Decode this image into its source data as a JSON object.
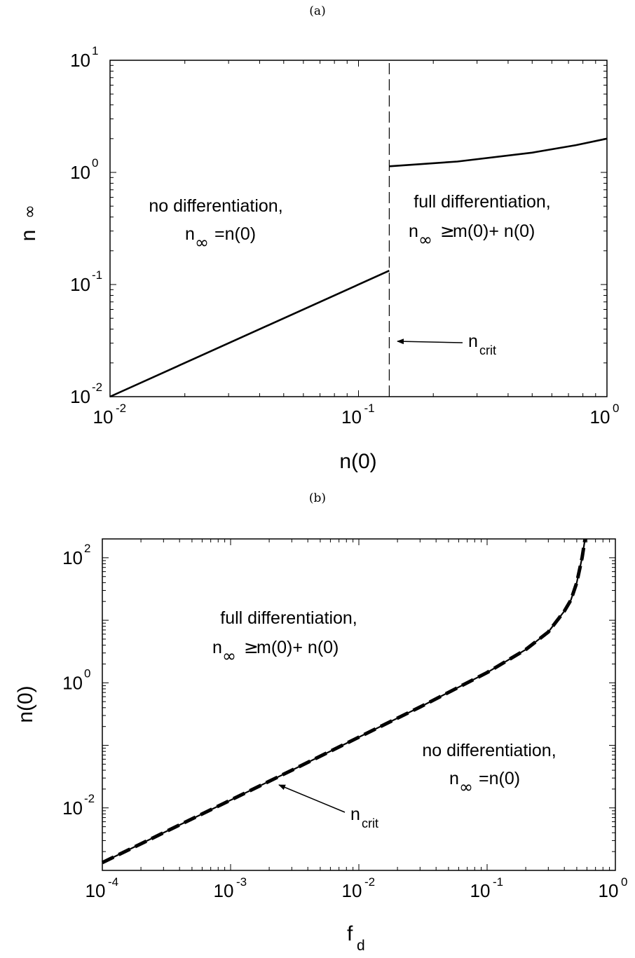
{
  "chart_data": [
    {
      "panel_label": "(a)",
      "type": "line",
      "x_scale": "log",
      "y_scale": "log",
      "xlim": [
        0.01,
        1
      ],
      "ylim": [
        0.01,
        10
      ],
      "xlabel": "n(0)",
      "ylabel": {
        "main": "n",
        "sub_symbol": "∞"
      },
      "x_ticks": [
        {
          "base": "10",
          "exp": "-2"
        },
        {
          "base": "10",
          "exp": "-1"
        },
        {
          "base": "10",
          "exp": "0"
        }
      ],
      "y_ticks": [
        {
          "base": "10",
          "exp": "-2"
        },
        {
          "base": "10",
          "exp": "-1"
        },
        {
          "base": "10",
          "exp": "0"
        },
        {
          "base": "10",
          "exp": "1"
        }
      ],
      "n_crit": 0.133,
      "series": [
        {
          "style": "solid",
          "x": [
            0.01,
            0.133
          ],
          "y": [
            0.01,
            0.133
          ]
        },
        {
          "style": "solid",
          "x": [
            0.133,
            0.25,
            0.5,
            0.75,
            1.0
          ],
          "y": [
            1.133,
            1.25,
            1.5,
            1.75,
            2.0
          ]
        },
        {
          "style": "dashed",
          "x": [
            0.133,
            0.133
          ],
          "y": [
            0.01,
            10
          ]
        }
      ],
      "annotations": {
        "left_region": {
          "line1": "no differentiation,",
          "line2_main": "n",
          "line2_sub": "∞",
          "line2_rest": "=n(0)"
        },
        "right_region": {
          "line1": "full differentiation,",
          "line2_main": "n",
          "line2_sub": "∞",
          "line2_ge": "≥",
          "line2_rest": " m(0)+ n(0)"
        },
        "arrow_label": {
          "main": "n",
          "sub": "crit"
        }
      }
    },
    {
      "panel_label": "(b)",
      "type": "line",
      "x_scale": "log",
      "y_scale": "log",
      "xlim": [
        0.0001,
        1
      ],
      "ylim": [
        0.001,
        200
      ],
      "xlabel": {
        "main": "f",
        "sub": "d"
      },
      "ylabel": "n(0)",
      "x_ticks": [
        {
          "base": "10",
          "exp": "-4"
        },
        {
          "base": "10",
          "exp": "-3"
        },
        {
          "base": "10",
          "exp": "-2"
        },
        {
          "base": "10",
          "exp": "-1"
        },
        {
          "base": "10",
          "exp": "0"
        }
      ],
      "y_ticks": [
        {
          "base": "10",
          "exp": "-2"
        },
        {
          "base": "10",
          "exp": "0"
        },
        {
          "base": "10",
          "exp": "2"
        }
      ],
      "series": [
        {
          "style": "solid",
          "x": [
            0.0001,
            0.0003,
            0.001,
            0.003,
            0.01,
            0.03,
            0.1,
            0.2,
            0.3,
            0.4,
            0.45,
            0.5,
            0.55,
            0.58
          ],
          "y": [
            0.00133,
            0.004,
            0.0133,
            0.04,
            0.135,
            0.41,
            1.46,
            3.4,
            6.5,
            14,
            21,
            40,
            100,
            200
          ]
        },
        {
          "style": "dashed",
          "x": [
            0.0001,
            0.0003,
            0.001,
            0.003,
            0.01,
            0.03,
            0.1,
            0.2,
            0.3,
            0.4,
            0.45,
            0.5,
            0.55,
            0.58
          ],
          "y": [
            0.00133,
            0.004,
            0.0133,
            0.04,
            0.135,
            0.41,
            1.46,
            3.4,
            6.5,
            14,
            21,
            40,
            100,
            200
          ]
        }
      ],
      "annotations": {
        "upper_region": {
          "line1": "full differentiation,",
          "line2_main": "n",
          "line2_sub": "∞",
          "line2_ge": "≥",
          "line2_rest": " m(0)+ n(0)"
        },
        "lower_region": {
          "line1": "no differentiation,",
          "line2_main": "n",
          "line2_sub": "∞",
          "line2_rest": "=n(0)"
        },
        "arrow_label": {
          "main": "n",
          "sub": "crit"
        }
      }
    }
  ]
}
